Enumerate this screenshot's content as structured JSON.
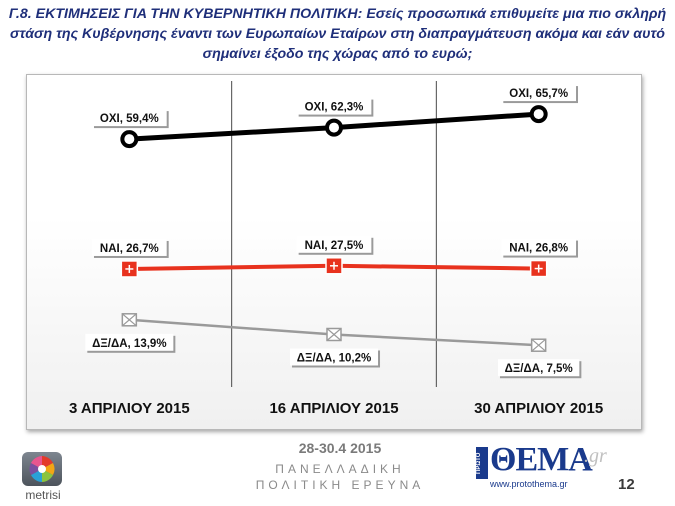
{
  "title": {
    "prefix": "Γ.8. ΕΚΤΙΜΗΣΕΙΣ ΓΙΑ ΤΗΝ ΚΥΒΕΡΝΗΤΙΚΗ ΠΟΛΙΤΙΚΗ:",
    "text": "Εσείς προσωπικά επιθυμείτε μια πιο σκληρή στάση της Κυβέρνησης έναντι των Ευρωπαίων Εταίρων στη διαπραγμάτευση ακόμα και εάν αυτό σημαίνει έξοδο της χώρας από το ευρώ;"
  },
  "chart_data": {
    "type": "line",
    "categories": [
      "3 ΑΠΡΙΛΙΟΥ 2015",
      "16 ΑΠΡΙΛΙΟΥ 2015",
      "30 ΑΠΡΙΛΙΟΥ 2015"
    ],
    "ylim": [
      0,
      70
    ],
    "grid": "vertical",
    "series": [
      {
        "name": "ΟΧΙ",
        "values": [
          59.4,
          62.3,
          65.7
        ],
        "labels": [
          "ΟΧΙ, 59,4%",
          "ΟΧΙ, 62,3%",
          "ΟΧΙ, 65,7%"
        ],
        "color": "#000000",
        "marker": "circle"
      },
      {
        "name": "ΝΑΙ",
        "values": [
          26.7,
          27.5,
          26.8
        ],
        "labels": [
          "ΝΑΙ, 26,7%",
          "ΝΑΙ, 27,5%",
          "ΝΑΙ, 26,8%"
        ],
        "color": "#e8321e",
        "marker": "square"
      },
      {
        "name": "ΔΞ/ΔΑ",
        "values": [
          13.9,
          10.2,
          7.5
        ],
        "labels": [
          "ΔΞ/ΔΑ, 13,9%",
          "ΔΞ/ΔΑ, 10,2%",
          "ΔΞ/ΔΑ, 7,5%"
        ],
        "color": "#9a9a9a",
        "marker": "cross"
      }
    ]
  },
  "footer": {
    "date": "28-30.4 2015",
    "line1": "ΠΑΝΕΛΛΑΔΙΚΗ",
    "line2": "ΠΟΛΙΤΙΚΗ ΕΡΕΥΝΑ",
    "page": "12"
  },
  "logos": {
    "metrisi": "metrisi",
    "thema_prefix": "ΠΡΩΤΟ",
    "thema_name": "ΘΕΜΑ",
    "thema_gr": ".gr",
    "thema_url": "www.protothema.gr"
  }
}
